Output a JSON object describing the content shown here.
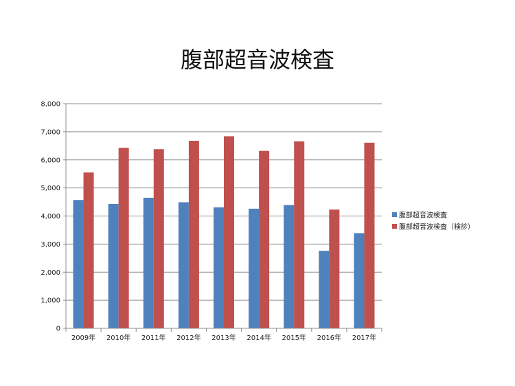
{
  "chart_data": {
    "type": "bar",
    "title": "腹部超音波検査",
    "categories": [
      "2009年",
      "2010年",
      "2011年",
      "2012年",
      "2013年",
      "2014年",
      "2015年",
      "2016年",
      "2017年"
    ],
    "series": [
      {
        "name": "腹部超音波検査",
        "color": "#4f81bd",
        "values": [
          4570,
          4430,
          4650,
          4490,
          4310,
          4260,
          4390,
          2760,
          3390
        ]
      },
      {
        "name": "腹部超音波検査（検診）",
        "color": "#c0504d",
        "values": [
          5550,
          6430,
          6380,
          6680,
          6840,
          6320,
          6660,
          4230,
          6610
        ]
      }
    ],
    "ylim": [
      0,
      8000
    ],
    "yticks": [
      "0",
      "1,000",
      "2,000",
      "3,000",
      "4,000",
      "5,000",
      "6,000",
      "7,000",
      "8,000"
    ],
    "grid": true,
    "legend_position": "right"
  }
}
